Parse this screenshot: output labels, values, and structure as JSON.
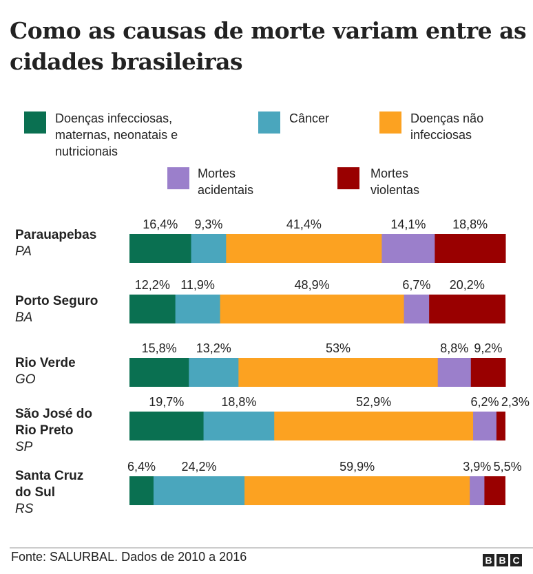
{
  "title": "Como as causas de morte variam entre as cidades brasileiras",
  "legend": [
    {
      "label": "Doenças infecciosas, maternas, neonatais e nutricionais",
      "lines": [
        "Doenças infecciosas,",
        "maternas, neonatais e",
        "nutricionais"
      ],
      "color": "#0a7051"
    },
    {
      "label": "Câncer",
      "lines": [
        "Câncer"
      ],
      "color": "#4aa6bd"
    },
    {
      "label": "Doenças não infecciosas",
      "lines": [
        "Doenças não",
        "infecciosas"
      ],
      "color": "#fca221"
    },
    {
      "label": "Mortes acidentais",
      "lines": [
        "Mortes",
        "acidentais"
      ],
      "color": "#9b7fcb"
    },
    {
      "label": "Mortes violentas",
      "lines": [
        "Mortes",
        "violentas"
      ],
      "color": "#990000"
    }
  ],
  "chart_data": {
    "type": "bar",
    "orientation": "horizontal",
    "stacked": true,
    "title": "Como as causas de morte variam entre as cidades brasileiras",
    "categories": [
      {
        "city": [
          "Parauapebas"
        ],
        "state": "PA"
      },
      {
        "city": [
          "Porto Seguro"
        ],
        "state": "BA"
      },
      {
        "city": [
          "Rio Verde"
        ],
        "state": "GO"
      },
      {
        "city": [
          "São José do",
          "Rio Preto"
        ],
        "state": "SP"
      },
      {
        "city": [
          "Santa Cruz",
          "do Sul"
        ],
        "state": "RS"
      }
    ],
    "series": [
      {
        "name": "Doenças infecciosas, maternas, neonatais e nutricionais",
        "values": [
          16.4,
          12.2,
          15.8,
          19.7,
          6.4
        ]
      },
      {
        "name": "Câncer",
        "values": [
          9.3,
          11.9,
          13.2,
          18.8,
          24.2
        ]
      },
      {
        "name": "Doenças não infecciosas",
        "values": [
          41.4,
          48.9,
          53,
          52.9,
          59.9
        ]
      },
      {
        "name": "Mortes acidentais",
        "values": [
          14.1,
          6.7,
          8.8,
          6.2,
          3.9
        ]
      },
      {
        "name": "Mortes violentas",
        "values": [
          18.8,
          20.2,
          9.2,
          2.3,
          5.5
        ]
      }
    ],
    "labels": [
      [
        "16,4%",
        "9,3%",
        "41,4%",
        "14,1%",
        "18,8%"
      ],
      [
        "12,2%",
        "11,9%",
        "48,9%",
        "6,7%",
        "20,2%"
      ],
      [
        "15,8%",
        "13,2%",
        "53%",
        "8,8%",
        "9,2%"
      ],
      [
        "19,7%",
        "18,8%",
        "52,9%",
        "6,2%",
        "2,3%"
      ],
      [
        "6,4%",
        "24,2%",
        "59,9%",
        "3,9%",
        "5,5%"
      ]
    ],
    "xlim": [
      0,
      100
    ],
    "grid": false,
    "legend_position": "top"
  },
  "footer": {
    "source": "Fonte: SALURBAL. Dados de 2010 a 2016",
    "logo": "BBC"
  }
}
